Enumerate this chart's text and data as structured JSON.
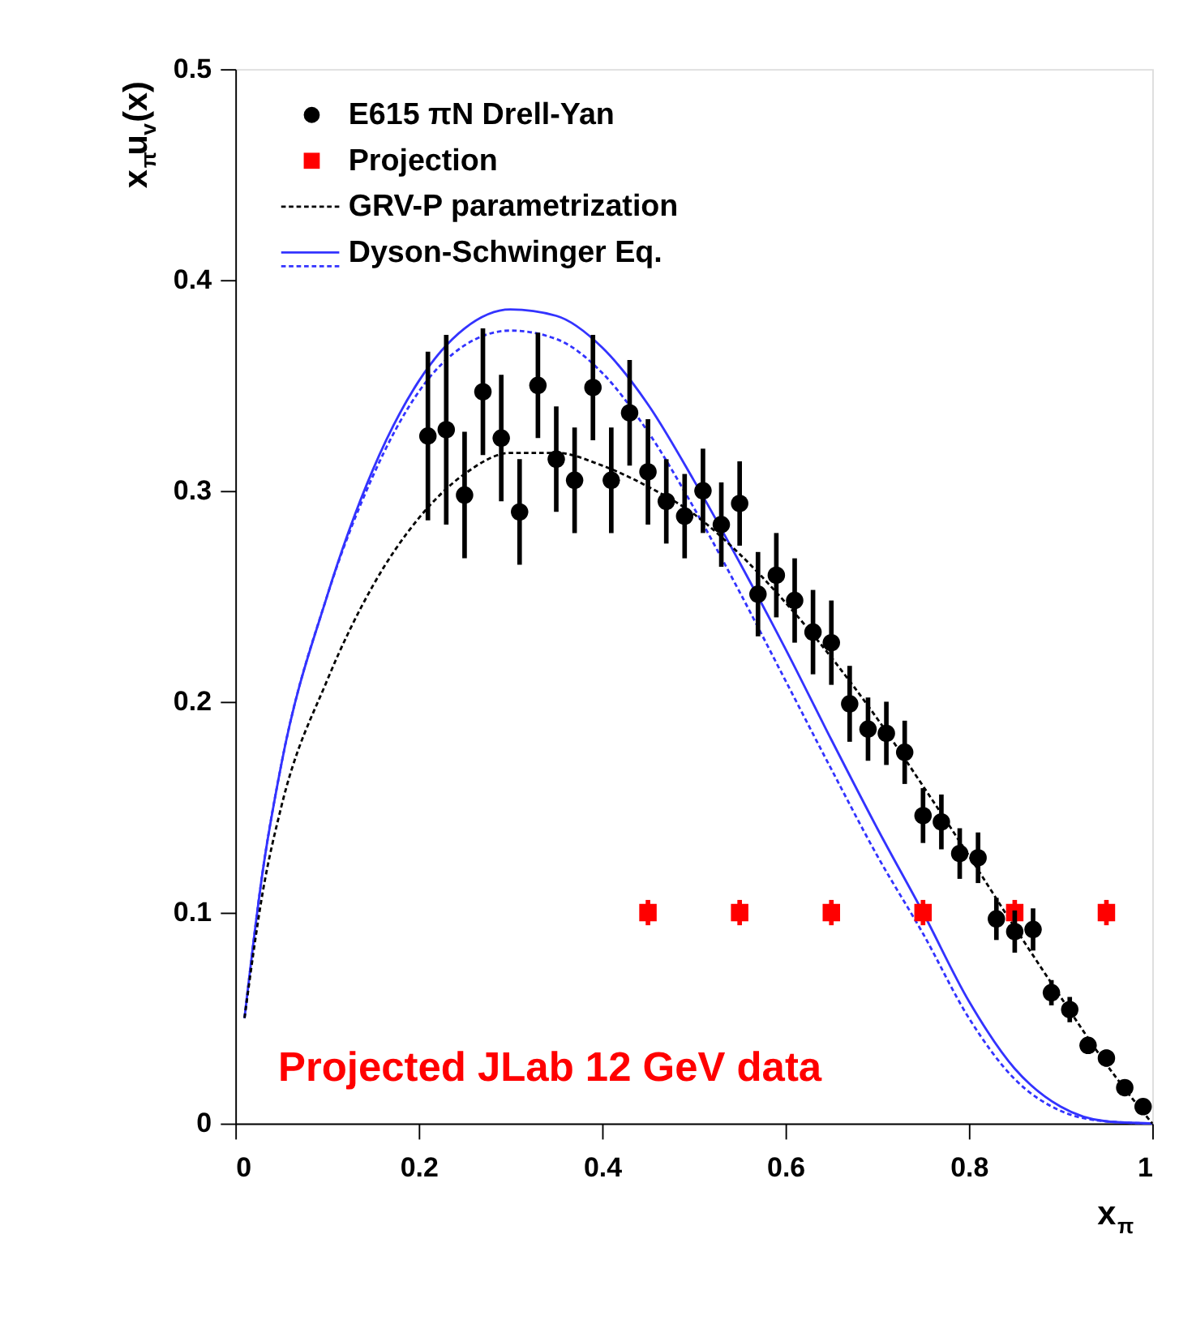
{
  "chart_data": {
    "type": "scatter",
    "xlabel": "x$_{π}$",
    "ylabel": "x$_{π}$u$_{v}$(x)",
    "xlim": [
      0,
      1
    ],
    "ylim": [
      0,
      0.5
    ],
    "xticks": [
      0,
      0.2,
      0.4,
      0.6,
      0.8,
      1
    ],
    "yticks": [
      0,
      0.1,
      0.2,
      0.3,
      0.4,
      0.5
    ],
    "grid": false,
    "legend": "top left",
    "annotations": [
      "Projected JLab 12 GeV data"
    ],
    "series": [
      {
        "name": "E615 πN Drell-Yan",
        "marker": "circle",
        "color": "#000000",
        "x": [
          0.21,
          0.23,
          0.25,
          0.27,
          0.29,
          0.31,
          0.33,
          0.35,
          0.37,
          0.39,
          0.41,
          0.43,
          0.45,
          0.47,
          0.49,
          0.51,
          0.53,
          0.55,
          0.57,
          0.59,
          0.61,
          0.63,
          0.65,
          0.67,
          0.69,
          0.71,
          0.73,
          0.75,
          0.77,
          0.79,
          0.81,
          0.83,
          0.85,
          0.87,
          0.89,
          0.91,
          0.93,
          0.95,
          0.97,
          0.99
        ],
        "values": [
          0.326,
          0.329,
          0.298,
          0.347,
          0.325,
          0.29,
          0.35,
          0.315,
          0.305,
          0.349,
          0.305,
          0.337,
          0.309,
          0.295,
          0.288,
          0.3,
          0.284,
          0.294,
          0.251,
          0.26,
          0.248,
          0.233,
          0.228,
          0.199,
          0.187,
          0.185,
          0.176,
          0.146,
          0.143,
          0.128,
          0.126,
          0.097,
          0.091,
          0.092,
          0.062,
          0.054,
          0.037,
          0.031,
          0.017,
          0.008
        ],
        "errors": [
          0.04,
          0.045,
          0.03,
          0.03,
          0.03,
          0.025,
          0.025,
          0.025,
          0.025,
          0.025,
          0.025,
          0.025,
          0.025,
          0.02,
          0.02,
          0.02,
          0.02,
          0.02,
          0.02,
          0.02,
          0.02,
          0.02,
          0.02,
          0.018,
          0.015,
          0.015,
          0.015,
          0.013,
          0.013,
          0.012,
          0.012,
          0.01,
          0.01,
          0.01,
          0.006,
          0.006,
          0.004,
          0.004,
          null,
          null
        ]
      },
      {
        "name": "Projection",
        "marker": "square",
        "color": "#ff0000",
        "x": [
          0.45,
          0.55,
          0.65,
          0.75,
          0.85,
          0.95
        ],
        "values": [
          0.1,
          0.1,
          0.1,
          0.1,
          0.1,
          0.1
        ],
        "errors": [
          0.006,
          0.006,
          0.006,
          0.006,
          0.006,
          0.006
        ]
      },
      {
        "name": "GRV-P parametrization",
        "type": "line",
        "line_style": "dashed",
        "color": "#000000",
        "x": [
          0.01,
          0.03,
          0.05,
          0.1,
          0.15,
          0.2,
          0.25,
          0.3,
          0.35,
          0.4,
          0.45,
          0.5,
          0.55,
          0.6,
          0.65,
          0.7,
          0.75,
          0.8,
          0.85,
          0.9,
          0.95,
          1.0
        ],
        "values": [
          0.05,
          0.11,
          0.15,
          0.21,
          0.255,
          0.287,
          0.308,
          0.318,
          0.318,
          0.312,
          0.302,
          0.289,
          0.27,
          0.247,
          0.221,
          0.192,
          0.16,
          0.127,
          0.093,
          0.06,
          0.028,
          0.0
        ]
      },
      {
        "name": "Dyson-Schwinger Eq.",
        "type": "line",
        "line_style": "solid",
        "color": "#3333ff",
        "x": [
          0.01,
          0.03,
          0.05,
          0.1,
          0.15,
          0.2,
          0.25,
          0.3,
          0.35,
          0.4,
          0.45,
          0.5,
          0.55,
          0.6,
          0.65,
          0.7,
          0.75,
          0.8,
          0.85,
          0.9,
          0.95,
          1.0
        ],
        "values": [
          0.05,
          0.12,
          0.17,
          0.25,
          0.31,
          0.352,
          0.377,
          0.386,
          0.383,
          0.368,
          0.341,
          0.305,
          0.266,
          0.225,
          0.182,
          0.14,
          0.1,
          0.058,
          0.026,
          0.008,
          0.001,
          0.0
        ]
      },
      {
        "type": "line",
        "line_style": "dashed",
        "color": "#3333ff",
        "x": [
          0.01,
          0.03,
          0.05,
          0.1,
          0.15,
          0.2,
          0.25,
          0.3,
          0.35,
          0.4,
          0.45,
          0.5,
          0.55,
          0.6,
          0.65,
          0.7,
          0.75,
          0.8,
          0.85,
          0.9,
          0.95,
          1.0
        ],
        "values": [
          0.05,
          0.12,
          0.17,
          0.25,
          0.307,
          0.347,
          0.369,
          0.376,
          0.372,
          0.356,
          0.328,
          0.292,
          0.252,
          0.21,
          0.168,
          0.127,
          0.09,
          0.05,
          0.021,
          0.006,
          0.001,
          0.0
        ]
      }
    ]
  }
}
